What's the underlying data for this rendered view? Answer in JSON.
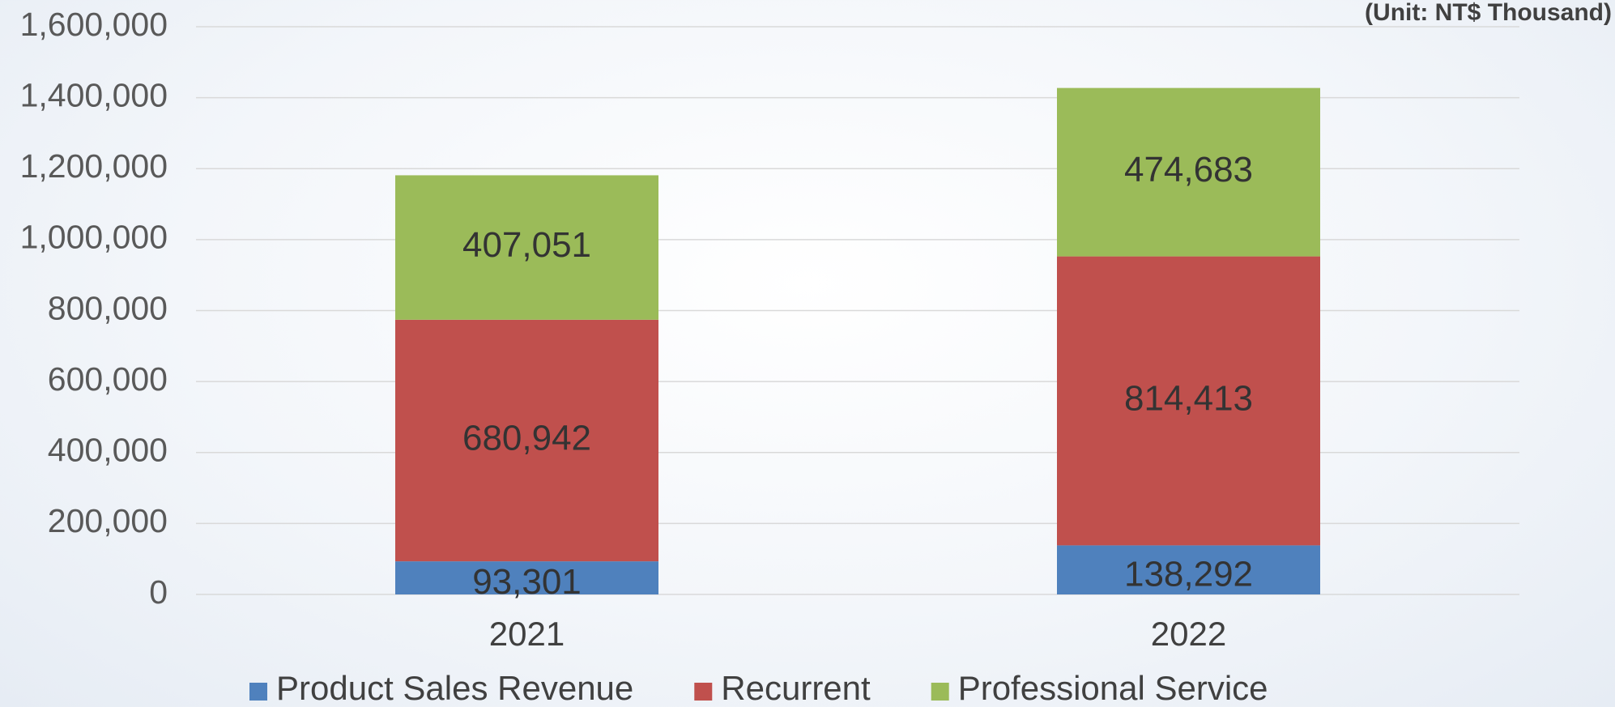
{
  "chart_data": {
    "type": "stacked_bar",
    "annotation": "(Unit: NT$ Thousand)",
    "categories": [
      "2021",
      "2022"
    ],
    "series": [
      {
        "name": "Product Sales Revenue",
        "color": "#4f81bd",
        "values": [
          93301,
          138292
        ],
        "value_labels": [
          "93,301",
          "138,292"
        ]
      },
      {
        "name": "Recurrent",
        "color": "#c0504d",
        "values": [
          680942,
          814413
        ],
        "value_labels": [
          "680,942",
          "814,413"
        ]
      },
      {
        "name": "Professional Service",
        "color": "#9bbb59",
        "values": [
          407051,
          474683
        ],
        "value_labels": [
          "407,051",
          "474,683"
        ]
      }
    ],
    "ylim": [
      0,
      1600000
    ],
    "yticks": [
      0,
      {
        "value": 200000,
        "label": "200,000"
      },
      {
        "value": 400000,
        "label": "400,000"
      },
      {
        "value": 600000,
        "label": "600,000"
      },
      {
        "value": 800000,
        "label": "800,000"
      },
      {
        "value": 1000000,
        "label": "1,000,000"
      },
      {
        "value": 1200000,
        "label": "1,200,000"
      },
      {
        "value": 1400000,
        "label": "1,400,000"
      },
      {
        "value": 1600000,
        "label": "1,600,000"
      }
    ],
    "grid": true,
    "legend": "bottom"
  }
}
